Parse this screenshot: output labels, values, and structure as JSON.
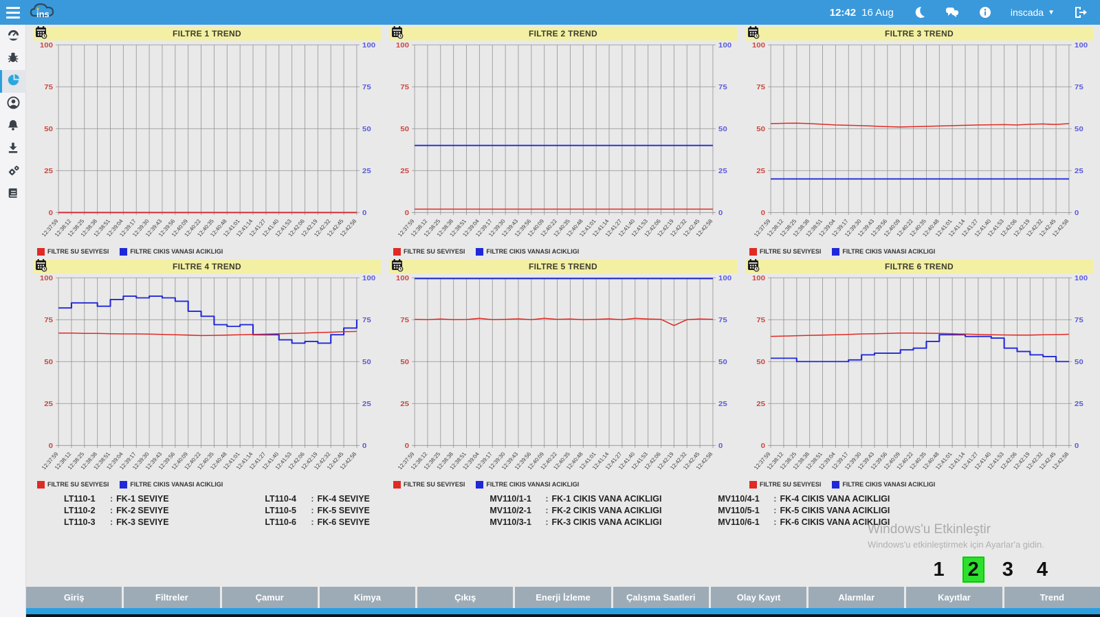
{
  "topbar": {
    "time": "12:42",
    "date": "16 Aug",
    "user_label": "inscada"
  },
  "sidebar": {
    "items": [
      {
        "icon": "dashboard-icon",
        "active": false
      },
      {
        "icon": "bug-icon",
        "active": false
      },
      {
        "icon": "pie-chart-icon",
        "active": true
      },
      {
        "icon": "user-icon",
        "active": false
      },
      {
        "icon": "bell-icon",
        "active": false
      },
      {
        "icon": "download-icon",
        "active": false
      },
      {
        "icon": "gears-icon",
        "active": false
      },
      {
        "icon": "book-icon",
        "active": false
      }
    ]
  },
  "colors": {
    "topbar_blue": "#3a99db",
    "header_yellow": "#f3f0a3",
    "series_red": "#e02a24",
    "series_blue": "#2028d8",
    "left_axis_red": "#cc4840",
    "right_axis_blue": "#5b5bdb",
    "nav_gray": "#9dabb6",
    "active_page_green": "#2ee02e",
    "strip_blue": "#2b9fe0"
  },
  "chart_data": [
    {
      "type": "line",
      "title": "FILTRE 1 TREND",
      "ylim": [
        0,
        100
      ],
      "y_ticks": [
        0,
        25,
        50,
        75,
        100
      ],
      "x_labels": [
        "12:37:59",
        "12:38:12",
        "12:38:25",
        "12:38:38",
        "12:38:51",
        "12:39:04",
        "12:39:17",
        "12:39:30",
        "12:39:43",
        "12:39:56",
        "12:40:09",
        "12:40:22",
        "12:40:35",
        "12:40:48",
        "12:41:01",
        "12:41:14",
        "12:41:27",
        "12:41:40",
        "12:41:53",
        "12:42:06",
        "12:42:19",
        "12:42:32",
        "12:42:45",
        "12:42:58"
      ],
      "series": [
        {
          "name": "FILTRE SU SEVIYESI",
          "color": "#e02a24",
          "step": false,
          "values": [
            0,
            0,
            0,
            0,
            0,
            0,
            0,
            0,
            0,
            0,
            0,
            0,
            0,
            0,
            0,
            0,
            0,
            0,
            0,
            0,
            0,
            0,
            0,
            0
          ]
        },
        {
          "name": "FILTRE CIKIS VANASI ACIKLIGI",
          "color": "#2028d8",
          "step": false,
          "values": [
            0,
            0,
            0,
            0,
            0,
            0,
            0,
            0,
            0,
            0,
            0,
            0,
            0,
            0,
            0,
            0,
            0,
            0,
            0,
            0,
            0,
            0,
            0,
            0
          ]
        }
      ]
    },
    {
      "type": "line",
      "title": "FILTRE 2 TREND",
      "ylim": [
        0,
        100
      ],
      "y_ticks": [
        0,
        25,
        50,
        75,
        100
      ],
      "x_labels": [
        "12:37:59",
        "12:38:12",
        "12:38:25",
        "12:38:38",
        "12:38:51",
        "12:39:04",
        "12:39:17",
        "12:39:30",
        "12:39:43",
        "12:39:56",
        "12:40:09",
        "12:40:22",
        "12:40:35",
        "12:40:48",
        "12:41:01",
        "12:41:14",
        "12:41:27",
        "12:41:40",
        "12:41:53",
        "12:42:06",
        "12:42:19",
        "12:42:32",
        "12:42:45",
        "12:42:58"
      ],
      "series": [
        {
          "name": "FILTRE SU SEVIYESI",
          "color": "#e02a24",
          "step": false,
          "values": [
            2,
            2,
            2,
            2,
            2,
            2,
            2,
            2,
            2,
            2,
            2,
            2,
            2,
            2,
            2,
            2,
            2,
            2,
            2,
            2,
            2,
            2,
            2,
            2
          ]
        },
        {
          "name": "FILTRE CIKIS VANASI ACIKLIGI",
          "color": "#2028d8",
          "step": false,
          "values": [
            40,
            40,
            40,
            40,
            40,
            40,
            40,
            40,
            40,
            40,
            40,
            40,
            40,
            40,
            40,
            40,
            40,
            40,
            40,
            40,
            40,
            40,
            40,
            40
          ]
        }
      ]
    },
    {
      "type": "line",
      "title": "FILTRE 3 TREND",
      "ylim": [
        0,
        100
      ],
      "y_ticks": [
        0,
        25,
        50,
        75,
        100
      ],
      "x_labels": [
        "12:37:59",
        "12:38:12",
        "12:38:25",
        "12:38:38",
        "12:38:51",
        "12:39:04",
        "12:39:17",
        "12:39:30",
        "12:39:43",
        "12:39:56",
        "12:40:09",
        "12:40:22",
        "12:40:35",
        "12:40:48",
        "12:41:01",
        "12:41:14",
        "12:41:27",
        "12:41:40",
        "12:41:53",
        "12:42:06",
        "12:42:19",
        "12:42:32",
        "12:42:45",
        "12:42:58"
      ],
      "series": [
        {
          "name": "FILTRE SU SEVIYESI",
          "color": "#e02a24",
          "step": false,
          "values": [
            53,
            53.2,
            53.3,
            53,
            52.6,
            52.2,
            52,
            51.8,
            51.5,
            51.2,
            51,
            51.2,
            51.4,
            51.6,
            51.8,
            52,
            52.2,
            52.3,
            52.4,
            52.2,
            52.6,
            52.8,
            52.5,
            53
          ]
        },
        {
          "name": "FILTRE CIKIS VANASI ACIKLIGI",
          "color": "#2028d8",
          "step": false,
          "values": [
            20,
            20,
            20,
            20,
            20,
            20,
            20,
            20,
            20,
            20,
            20,
            20,
            20,
            20,
            20,
            20,
            20,
            20,
            20,
            20,
            20,
            20,
            20,
            20
          ]
        }
      ]
    },
    {
      "type": "line",
      "title": "FILTRE 4 TREND",
      "ylim": [
        0,
        100
      ],
      "y_ticks": [
        0,
        25,
        50,
        75,
        100
      ],
      "x_labels": [
        "12:37:59",
        "12:38:12",
        "12:38:25",
        "12:38:38",
        "12:38:51",
        "12:39:04",
        "12:39:17",
        "12:39:30",
        "12:39:43",
        "12:39:56",
        "12:40:09",
        "12:40:22",
        "12:40:35",
        "12:40:48",
        "12:41:01",
        "12:41:14",
        "12:41:27",
        "12:41:40",
        "12:41:53",
        "12:42:06",
        "12:42:19",
        "12:42:32",
        "12:42:45",
        "12:42:58"
      ],
      "series": [
        {
          "name": "FILTRE SU SEVIYESI",
          "color": "#e02a24",
          "step": false,
          "values": [
            67,
            67,
            66.8,
            66.8,
            66.6,
            66.5,
            66.5,
            66.4,
            66.2,
            66,
            65.8,
            65.5,
            65.6,
            65.8,
            66,
            66.2,
            66.4,
            66.6,
            66.8,
            67,
            67.3,
            67.5,
            67.8,
            68
          ]
        },
        {
          "name": "FILTRE CIKIS VANASI ACIKLIGI",
          "color": "#2028d8",
          "step": true,
          "values": [
            82,
            85,
            85,
            83,
            87,
            89,
            88,
            89,
            88,
            86,
            80,
            77,
            72,
            71,
            72,
            66,
            66,
            63,
            61,
            62,
            61,
            66,
            70,
            75
          ]
        }
      ]
    },
    {
      "type": "line",
      "title": "FILTRE 5 TREND",
      "ylim": [
        0,
        100
      ],
      "y_ticks": [
        0,
        25,
        50,
        75,
        100
      ],
      "x_labels": [
        "12:37:59",
        "12:38:12",
        "12:38:25",
        "12:38:38",
        "12:38:51",
        "12:39:04",
        "12:39:17",
        "12:39:30",
        "12:39:43",
        "12:39:56",
        "12:40:09",
        "12:40:22",
        "12:40:35",
        "12:40:48",
        "12:41:01",
        "12:41:14",
        "12:41:27",
        "12:41:40",
        "12:41:53",
        "12:42:06",
        "12:42:19",
        "12:42:32",
        "12:42:45",
        "12:42:58"
      ],
      "series": [
        {
          "name": "FILTRE SU SEVIYESI",
          "color": "#e02a24",
          "step": false,
          "values": [
            75.2,
            75,
            75.4,
            75,
            75.1,
            75.8,
            75,
            75.2,
            75.5,
            75,
            75.8,
            75.2,
            75.4,
            75,
            75.2,
            75.5,
            75,
            75.8,
            75.4,
            75.2,
            71.5,
            75,
            75.4,
            75.2
          ]
        },
        {
          "name": "FILTRE CIKIS VANASI ACIKLIGI",
          "color": "#2028d8",
          "step": false,
          "values": [
            99.5,
            99.5,
            99.5,
            99.5,
            99.5,
            99.5,
            99.5,
            99.5,
            99.5,
            99.5,
            99.5,
            99.5,
            99.5,
            99.5,
            99.5,
            99.5,
            99.5,
            99.5,
            99.5,
            99.5,
            99.5,
            99.5,
            99.5,
            99.5
          ]
        }
      ]
    },
    {
      "type": "line",
      "title": "FILTRE 6 TREND",
      "ylim": [
        0,
        100
      ],
      "y_ticks": [
        0,
        25,
        50,
        75,
        100
      ],
      "x_labels": [
        "12:37:59",
        "12:38:12",
        "12:38:25",
        "12:38:38",
        "12:38:51",
        "12:39:04",
        "12:39:17",
        "12:39:30",
        "12:39:43",
        "12:39:56",
        "12:40:09",
        "12:40:22",
        "12:40:35",
        "12:40:48",
        "12:41:01",
        "12:41:14",
        "12:41:27",
        "12:41:40",
        "12:41:53",
        "12:42:06",
        "12:42:19",
        "12:42:32",
        "12:42:45",
        "12:42:58"
      ],
      "series": [
        {
          "name": "FILTRE SU SEVIYESI",
          "color": "#e02a24",
          "step": false,
          "values": [
            65,
            65.2,
            65.4,
            65.6,
            65.8,
            66,
            66.2,
            66.5,
            66.6,
            66.8,
            67,
            67,
            66.9,
            66.8,
            66.6,
            66.4,
            66.2,
            66,
            65.9,
            65.8,
            65.8,
            66,
            66.1,
            66.3
          ]
        },
        {
          "name": "FILTRE CIKIS VANASI ACIKLIGI",
          "color": "#2028d8",
          "step": true,
          "values": [
            52,
            52,
            50,
            50,
            50,
            50,
            51,
            54,
            55,
            55,
            57,
            58,
            62,
            66,
            66,
            65,
            65,
            64,
            58,
            56,
            54,
            53,
            50,
            50
          ]
        }
      ]
    }
  ],
  "bottom_labels": {
    "separator": ":",
    "columns": [
      {
        "items": [
          {
            "tag": "LT110-1",
            "desc": "FK-1 SEVIYE"
          },
          {
            "tag": "LT110-2",
            "desc": "FK-2 SEVIYE"
          },
          {
            "tag": "LT110-3",
            "desc": "FK-3 SEVIYE"
          }
        ]
      },
      {
        "items": [
          {
            "tag": "LT110-4",
            "desc": "FK-4 SEVIYE"
          },
          {
            "tag": "LT110-5",
            "desc": "FK-5 SEVIYE"
          },
          {
            "tag": "LT110-6",
            "desc": "FK-6 SEVIYE"
          }
        ]
      },
      {
        "items": [
          {
            "tag": "MV110/1-1",
            "desc": "FK-1 CIKIS VANA ACIKLIGI"
          },
          {
            "tag": "MV110/2-1",
            "desc": "FK-2 CIKIS VANA ACIKLIGI"
          },
          {
            "tag": "MV110/3-1",
            "desc": "FK-3 CIKIS VANA ACIKLIGI"
          }
        ]
      },
      {
        "items": [
          {
            "tag": "MV110/4-1",
            "desc": "FK-4 CIKIS VANA ACIKLIGI"
          },
          {
            "tag": "MV110/5-1",
            "desc": "FK-5 CIKIS VANA ACIKLIGI"
          },
          {
            "tag": "MV110/6-1",
            "desc": "FK-6 CIKIS VANA ACIKLIGI"
          }
        ]
      }
    ]
  },
  "pagination": {
    "pages": [
      "1",
      "2",
      "3",
      "4"
    ],
    "active_index": 1,
    "active_color": "#2ee02e"
  },
  "watermark": {
    "line1": "Windows'u Etkinleştir",
    "line2": "Windows'u etkinleştirmek için Ayarlar'a gidin."
  },
  "nav": {
    "items": [
      "Giriş",
      "Filtreler",
      "Çamur",
      "Kimya",
      "Çıkış",
      "Enerji İzleme",
      "Çalışma Saatleri",
      "Olay Kayıt",
      "Alarmlar",
      "Kayıtlar",
      "Trend"
    ]
  }
}
